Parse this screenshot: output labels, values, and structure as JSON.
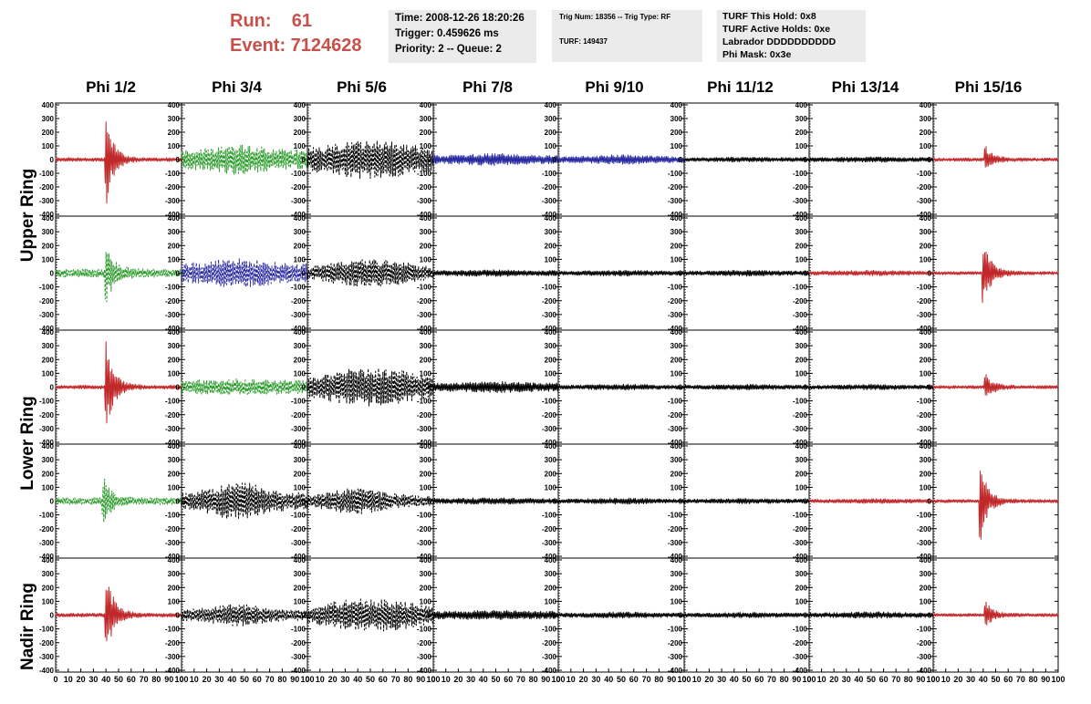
{
  "header": {
    "run_label": "Run:    61",
    "event_label": "Event: 7124628"
  },
  "info_boxes": {
    "time": [
      "Time: 2008-12-26 18:20:26",
      "Trigger: 0.459626 ms",
      "Priority: 2 -- Queue: 2"
    ],
    "trig": [
      "Trig Num: 18356 -- Trig Type: RF",
      "TURF: 149437"
    ],
    "turf": [
      "TURF This Hold: 0x8",
      "TURF Active Holds: 0xe",
      "Labrador DDDDDDDDDD",
      "Phi Mask: 0x3e"
    ]
  },
  "columns": [
    "Phi 1/2",
    "Phi 3/4",
    "Phi 5/6",
    "Phi 7/8",
    "Phi 9/10",
    "Phi 11/12",
    "Phi 13/14",
    "Phi 15/16"
  ],
  "ring_labels": [
    "Upper Ring",
    "Lower Ring",
    "Nadir Ring"
  ],
  "colors": {
    "red": "#c0282a",
    "green": "#2a9a2a",
    "blue": "#2a2aa0",
    "black": "#000000",
    "title_red": "#c8504a",
    "box_bg": "#ebebeb"
  },
  "chart_data": {
    "type": "line",
    "description_axes": "Waveform voltage vs time; each panel shares x range 0-100 and y range -400 to 400",
    "xlim": [
      0,
      100
    ],
    "ylim": [
      -400,
      400
    ],
    "y_ticks": [
      -400,
      -300,
      -200,
      -100,
      0,
      100,
      200,
      300,
      400
    ],
    "x_ticks": [
      0,
      10,
      20,
      30,
      40,
      50,
      60,
      70,
      80,
      90,
      100
    ],
    "x_tick_labels": [
      "0",
      "10",
      "20",
      "30",
      "40",
      "50",
      "60",
      "70",
      "80",
      "90",
      "100"
    ],
    "rows": [
      {
        "panels": [
          {
            "color": "red",
            "style": "solid",
            "shape": "burst",
            "peak": 330,
            "center": 40,
            "base": 14
          },
          {
            "color": "green",
            "style": "dashed",
            "shape": "noise",
            "amp": 110,
            "center": 45,
            "base": 70
          },
          {
            "color": "black",
            "style": "dashed",
            "shape": "envelope",
            "amp": 140,
            "base": 80
          },
          {
            "color": "blue",
            "style": "solid",
            "shape": "noise",
            "amp": 45,
            "base": 30
          },
          {
            "color": "blue",
            "style": "solid",
            "shape": "noise",
            "amp": 35,
            "base": 22
          },
          {
            "color": "black",
            "style": "solid",
            "shape": "noise",
            "amp": 18,
            "base": 14
          },
          {
            "color": "black",
            "style": "solid",
            "shape": "noise",
            "amp": 20,
            "base": 15
          },
          {
            "color": "red",
            "style": "solid",
            "shape": "burst",
            "peak": 110,
            "center": 42,
            "base": 12
          }
        ]
      },
      {
        "panels": [
          {
            "color": "green",
            "style": "dashed",
            "shape": "burst",
            "peak": 240,
            "center": 40,
            "base": 30
          },
          {
            "color": "blue",
            "style": "dashed",
            "shape": "noise",
            "amp": 110,
            "center": 45,
            "base": 70
          },
          {
            "color": "black",
            "style": "dashed",
            "shape": "envelope",
            "amp": 100,
            "base": 40
          },
          {
            "color": "black",
            "style": "solid",
            "shape": "noise",
            "amp": 25,
            "base": 18
          },
          {
            "color": "black",
            "style": "solid",
            "shape": "noise",
            "amp": 22,
            "base": 15
          },
          {
            "color": "black",
            "style": "solid",
            "shape": "noise",
            "amp": 22,
            "base": 15
          },
          {
            "color": "red",
            "style": "solid",
            "shape": "noise",
            "amp": 20,
            "base": 14
          },
          {
            "color": "red",
            "style": "solid",
            "shape": "burst",
            "peak": 250,
            "center": 40,
            "base": 12
          }
        ]
      },
      {
        "panels": [
          {
            "color": "red",
            "style": "solid",
            "shape": "burst",
            "peak": 340,
            "center": 40,
            "base": 14
          },
          {
            "color": "green",
            "style": "dashed",
            "shape": "noise",
            "amp": 60,
            "center": 45,
            "base": 50
          },
          {
            "color": "black",
            "style": "dashed",
            "shape": "envelope",
            "amp": 140,
            "base": 70
          },
          {
            "color": "black",
            "style": "solid",
            "shape": "noise",
            "amp": 40,
            "base": 30
          },
          {
            "color": "black",
            "style": "solid",
            "shape": "noise",
            "amp": 22,
            "base": 15
          },
          {
            "color": "black",
            "style": "solid",
            "shape": "noise",
            "amp": 20,
            "base": 14
          },
          {
            "color": "black",
            "style": "solid",
            "shape": "noise",
            "amp": 20,
            "base": 14
          },
          {
            "color": "red",
            "style": "solid",
            "shape": "burst",
            "peak": 100,
            "center": 42,
            "base": 12
          }
        ]
      },
      {
        "panels": [
          {
            "color": "green",
            "style": "dashed",
            "shape": "burst",
            "peak": 200,
            "center": 38,
            "base": 25
          },
          {
            "color": "black",
            "style": "dashed",
            "shape": "noise",
            "amp": 140,
            "center": 45,
            "base": 60
          },
          {
            "color": "black",
            "style": "dashed",
            "shape": "noise",
            "amp": 100,
            "center": 40,
            "base": 40
          },
          {
            "color": "black",
            "style": "solid",
            "shape": "noise",
            "amp": 25,
            "base": 18
          },
          {
            "color": "black",
            "style": "solid",
            "shape": "noise",
            "amp": 22,
            "base": 15
          },
          {
            "color": "black",
            "style": "solid",
            "shape": "noise",
            "amp": 20,
            "base": 14
          },
          {
            "color": "red",
            "style": "solid",
            "shape": "noise",
            "amp": 18,
            "base": 13
          },
          {
            "color": "red",
            "style": "solid",
            "shape": "burst",
            "peak": 280,
            "center": 38,
            "base": 12
          }
        ]
      },
      {
        "panels": [
          {
            "color": "red",
            "style": "solid",
            "shape": "burst",
            "peak": 330,
            "center": 40,
            "base": 14
          },
          {
            "color": "black",
            "style": "dashed",
            "shape": "noise",
            "amp": 80,
            "center": 45,
            "base": 40
          },
          {
            "color": "black",
            "style": "dashed",
            "shape": "envelope",
            "amp": 120,
            "base": 60
          },
          {
            "color": "black",
            "style": "solid",
            "shape": "noise",
            "amp": 35,
            "base": 28
          },
          {
            "color": "black",
            "style": "solid",
            "shape": "noise",
            "amp": 22,
            "base": 16
          },
          {
            "color": "black",
            "style": "solid",
            "shape": "noise",
            "amp": 20,
            "base": 14
          },
          {
            "color": "black",
            "style": "solid",
            "shape": "noise",
            "amp": 24,
            "base": 16
          },
          {
            "color": "red",
            "style": "solid",
            "shape": "burst",
            "peak": 100,
            "center": 42,
            "base": 12
          }
        ]
      }
    ]
  }
}
